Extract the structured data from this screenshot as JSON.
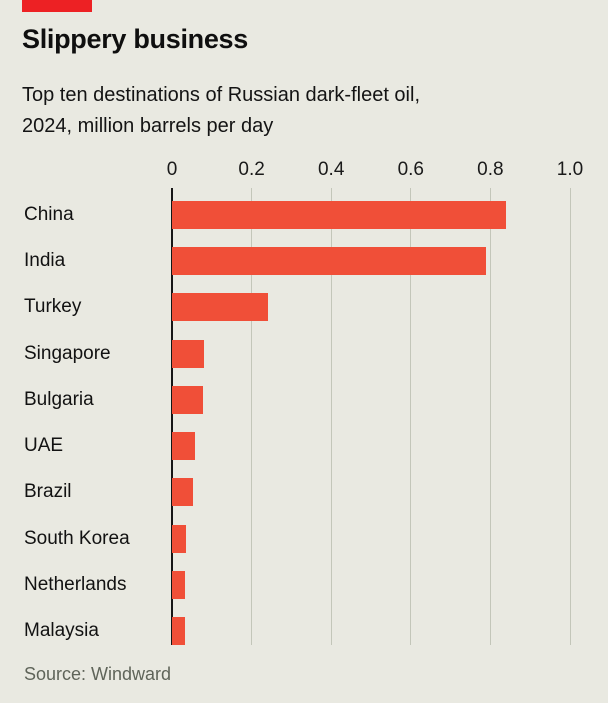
{
  "header": {
    "title": "Slippery business",
    "subtitle_line1": "Top ten destinations of Russian dark-fleet oil,",
    "subtitle_line2": "2024, million barrels per day"
  },
  "source_text": "Source: Windward",
  "colors": {
    "background": "#e9e9e1",
    "brand_tab_red": "#ed2124",
    "bar_red": "#f04f38",
    "gridline": "#c3c6b9",
    "axis_black": "#161616",
    "source_grey": "#5f6459"
  },
  "chart_data": {
    "type": "bar",
    "orientation": "horizontal",
    "title": "Slippery business",
    "subtitle": "Top ten destinations of Russian dark-fleet oil, 2024, million barrels per day",
    "unit": "million barrels per day",
    "categories": [
      "China",
      "India",
      "Turkey",
      "Singapore",
      "Bulgaria",
      "UAE",
      "Brazil",
      "South Korea",
      "Netherlands",
      "Malaysia"
    ],
    "values": [
      0.84,
      0.79,
      0.24,
      0.08,
      0.078,
      0.057,
      0.053,
      0.036,
      0.033,
      0.032
    ],
    "xlim": [
      0,
      1.0
    ],
    "x_tick_values": [
      0,
      0.2,
      0.4,
      0.6,
      0.8,
      1.0
    ],
    "x_tick_labels": [
      "0",
      "0.2",
      "0.4",
      "0.6",
      "0.8",
      "1.0"
    ],
    "grid": "vertical-gridlines",
    "legend": "none",
    "source": "Windward"
  }
}
